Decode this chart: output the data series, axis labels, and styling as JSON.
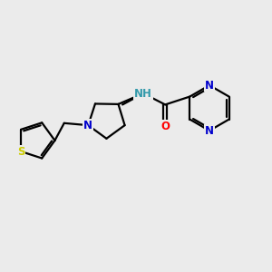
{
  "background_color": "#ebebeb",
  "bond_color": "#000000",
  "bond_width": 1.6,
  "atom_colors": {
    "N": "#0000cc",
    "NH": "#3399aa",
    "O": "#ff0000",
    "S": "#cccc00"
  },
  "font_size_atom": 8.5
}
